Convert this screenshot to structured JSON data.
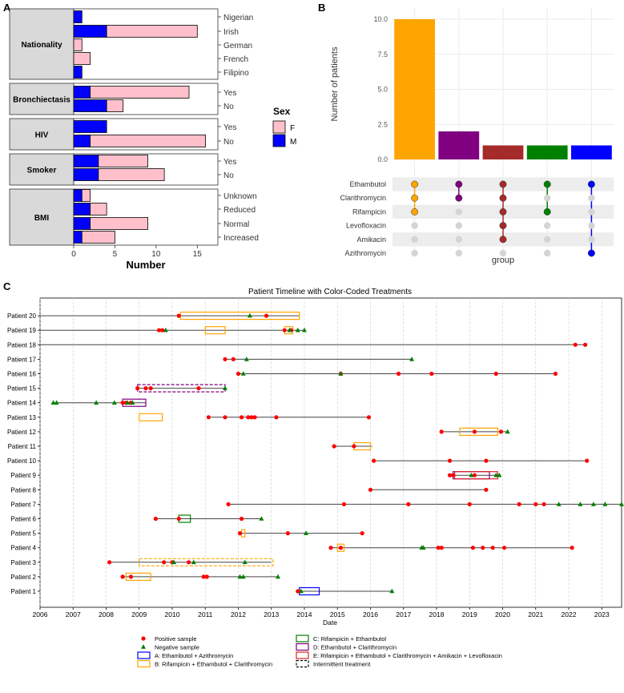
{
  "panelA": {
    "letter": "A",
    "xlabel": "Number",
    "x_ticks": [
      0,
      5,
      10,
      15
    ],
    "xlim": [
      0,
      17.5
    ],
    "legend": {
      "title": "Sex",
      "entries": [
        {
          "label": "F",
          "color": "#FFC0CB"
        },
        {
          "label": "M",
          "color": "#0000FF"
        }
      ]
    },
    "groups": [
      {
        "name": "Nationality",
        "rows": [
          {
            "label": "Nigerian",
            "M": 1,
            "F": 0
          },
          {
            "label": "Irish",
            "M": 4,
            "F": 11
          },
          {
            "label": "German",
            "M": 0,
            "F": 1
          },
          {
            "label": "French",
            "M": 0,
            "F": 2
          },
          {
            "label": "Filipino",
            "M": 1,
            "F": 0
          }
        ]
      },
      {
        "name": "Bronchiectasis",
        "rows": [
          {
            "label": "Yes",
            "M": 2,
            "F": 12
          },
          {
            "label": "No",
            "M": 4,
            "F": 2
          }
        ]
      },
      {
        "name": "HIV",
        "rows": [
          {
            "label": "Yes",
            "M": 4,
            "F": 0
          },
          {
            "label": "No",
            "M": 2,
            "F": 14
          }
        ]
      },
      {
        "name": "Smoker",
        "rows": [
          {
            "label": "Yes",
            "M": 3,
            "F": 6
          },
          {
            "label": "No",
            "M": 3,
            "F": 8
          }
        ]
      },
      {
        "name": "BMI",
        "rows": [
          {
            "label": "Unknown",
            "M": 1,
            "F": 1
          },
          {
            "label": "Reduced",
            "M": 2,
            "F": 2
          },
          {
            "label": "Normal",
            "M": 2,
            "F": 7
          },
          {
            "label": "Increased",
            "M": 1,
            "F": 4
          }
        ]
      }
    ]
  },
  "panelB": {
    "letter": "B",
    "ylabel": "Number of patients",
    "xlabel": "group",
    "y_ticks": [
      "0.0",
      "2.5",
      "5.0",
      "7.5",
      "10.0"
    ],
    "ylim": [
      0,
      10.8
    ],
    "drugs": [
      "Ethambutol",
      "Clarithromycin",
      "Rifampicin",
      "Levofloxacin",
      "Amikacin",
      "Azithromycin"
    ],
    "bars": [
      {
        "value": 10,
        "color": "#FFA500",
        "set": [
          0,
          1,
          2
        ]
      },
      {
        "value": 2,
        "color": "#800080",
        "set": [
          0,
          1
        ]
      },
      {
        "value": 1,
        "color": "#A52A2A",
        "set": [
          0,
          1,
          2,
          3,
          4
        ]
      },
      {
        "value": 1,
        "color": "#008000",
        "set": [
          0,
          2
        ]
      },
      {
        "value": 1,
        "color": "#0000FF",
        "set": [
          0,
          5
        ]
      }
    ]
  },
  "panelC": {
    "letter": "C",
    "title": "Patient Timeline with Color-Coded Treatments",
    "xlabel": "Date",
    "x_ticks": [
      2006,
      2007,
      2008,
      2009,
      2010,
      2011,
      2012,
      2013,
      2014,
      2015,
      2016,
      2017,
      2018,
      2019,
      2020,
      2021,
      2022,
      2023
    ],
    "xlim": [
      2006,
      2023.6
    ],
    "treatment_colors": {
      "A": "#0000FF",
      "B": "#FFA500",
      "C": "#008000",
      "D": "#800080",
      "E": "#D62728"
    },
    "patients": [
      {
        "name": "Patient 1",
        "start": 2013.8,
        "end": 2016.7,
        "pos": [
          2013.8
        ],
        "neg": [
          2013.9,
          2016.65
        ],
        "tx": [
          {
            "type": "A",
            "s": 2013.85,
            "e": 2014.45,
            "i": false
          }
        ]
      },
      {
        "name": "Patient 2",
        "start": 2008.5,
        "end": 2013.2,
        "pos": [
          2008.5,
          2008.75,
          2010.95,
          2011.05
        ],
        "neg": [
          2012.05,
          2012.15,
          2013.2
        ],
        "tx": [
          {
            "type": "B",
            "s": 2008.6,
            "e": 2009.35,
            "i": false
          }
        ]
      },
      {
        "name": "Patient 3",
        "start": 2008.1,
        "end": 2013.0,
        "pos": [
          2008.1,
          2009.75,
          2010.0,
          2010.5
        ],
        "neg": [
          2010.05,
          2010.65,
          2012.2
        ],
        "tx": [
          {
            "type": "B",
            "s": 2009.0,
            "e": 2013.05,
            "i": true
          }
        ]
      },
      {
        "name": "Patient 4",
        "start": 2014.8,
        "end": 2022.1,
        "pos": [
          2014.8,
          2015.1,
          2018.05,
          2018.15,
          2019.1,
          2019.4,
          2019.7,
          2020.05,
          2022.1
        ],
        "neg": [
          2017.55,
          2017.6
        ],
        "tx": [
          {
            "type": "B",
            "s": 2015.0,
            "e": 2015.2,
            "i": false
          }
        ]
      },
      {
        "name": "Patient 5",
        "start": 2012.05,
        "end": 2015.75,
        "pos": [
          2012.05,
          2013.5,
          2015.75
        ],
        "neg": [
          2014.05
        ],
        "tx": [
          {
            "type": "B",
            "s": 2012.1,
            "e": 2012.2,
            "i": false
          }
        ]
      },
      {
        "name": "Patient 6",
        "start": 2009.5,
        "end": 2012.7,
        "pos": [
          2009.5,
          2010.2,
          2012.1
        ],
        "neg": [
          2012.7
        ],
        "tx": [
          {
            "type": "C",
            "s": 2010.2,
            "e": 2010.55,
            "i": false
          }
        ]
      },
      {
        "name": "Patient 7",
        "start": 2011.7,
        "end": 2023.6,
        "pos": [
          2011.7,
          2015.2,
          2017.15,
          2019.0,
          2020.5,
          2021.0,
          2021.25
        ],
        "neg": [
          2021.7,
          2022.35,
          2022.75,
          2023.1,
          2023.6
        ],
        "tx": []
      },
      {
        "name": "Patient 8",
        "start": 2016.0,
        "end": 2019.5,
        "pos": [
          2016.0,
          2019.5
        ],
        "neg": [],
        "tx": []
      },
      {
        "name": "Patient 9",
        "start": 2018.4,
        "end": 2019.9,
        "pos": [
          2018.4,
          2018.5,
          2019.15
        ],
        "neg": [
          2019.05,
          2019.8,
          2019.9
        ],
        "tx": [
          {
            "type": "D",
            "s": 2018.5,
            "e": 2019.6,
            "i": false
          },
          {
            "type": "E",
            "s": 2018.55,
            "e": 2019.85,
            "i": false
          }
        ]
      },
      {
        "name": "Patient 10",
        "start": 2016.1,
        "end": 2022.55,
        "pos": [
          2016.1,
          2018.4,
          2019.5,
          2022.55
        ],
        "neg": [],
        "tx": []
      },
      {
        "name": "Patient 11",
        "start": 2014.9,
        "end": 2016.05,
        "pos": [
          2014.9,
          2015.5
        ],
        "neg": [],
        "tx": [
          {
            "type": "B",
            "s": 2015.5,
            "e": 2016.0,
            "i": false
          }
        ]
      },
      {
        "name": "Patient 12",
        "start": 2018.15,
        "end": 2020.15,
        "pos": [
          2018.15,
          2019.15,
          2019.95
        ],
        "neg": [
          2020.15
        ],
        "tx": [
          {
            "type": "B",
            "s": 2018.7,
            "e": 2019.85,
            "i": false
          }
        ]
      },
      {
        "name": "Patient 13",
        "start": 2011.1,
        "end": 2015.95,
        "pos": [
          2011.1,
          2011.6,
          2012.1,
          2012.3,
          2012.4,
          2012.5,
          2013.15,
          2015.95
        ],
        "neg": [],
        "tx": [
          {
            "type": "B",
            "s": 2009.0,
            "e": 2009.7,
            "i": false
          }
        ]
      },
      {
        "name": "Patient 14",
        "start": 2006.4,
        "end": 2009.2,
        "pos": [
          2008.5,
          2008.6,
          2008.75
        ],
        "neg": [
          2006.4,
          2006.5,
          2007.7,
          2008.25,
          2008.65,
          2008.8
        ],
        "tx": [
          {
            "type": "D",
            "s": 2008.5,
            "e": 2009.2,
            "i": false
          }
        ]
      },
      {
        "name": "Patient 15",
        "start": 2008.95,
        "end": 2011.6,
        "pos": [
          2008.95,
          2009.2,
          2009.35,
          2010.8
        ],
        "neg": [
          2011.6
        ],
        "tx": [
          {
            "type": "D",
            "s": 2008.95,
            "e": 2011.6,
            "i": true
          }
        ]
      },
      {
        "name": "Patient 16",
        "start": 2012.0,
        "end": 2021.6,
        "pos": [
          2012.0,
          2015.1,
          2016.85,
          2017.85,
          2019.8,
          2021.6
        ],
        "neg": [
          2012.15,
          2015.1
        ],
        "tx": []
      },
      {
        "name": "Patient 17",
        "start": 2011.6,
        "end": 2017.25,
        "pos": [
          2011.6,
          2011.85
        ],
        "neg": [
          2012.25,
          2017.25
        ],
        "tx": []
      },
      {
        "name": "Patient 18",
        "start": 2006.0,
        "end": 2022.5,
        "pos": [
          2022.2,
          2022.5
        ],
        "neg": [],
        "tx": []
      },
      {
        "name": "Patient 19",
        "start": 2006.0,
        "end": 2014.0,
        "pos": [
          2009.6,
          2009.7,
          2013.4,
          2013.6
        ],
        "neg": [
          2009.8,
          2013.55,
          2013.8,
          2014.0
        ],
        "tx": [
          {
            "type": "B",
            "s": 2011.0,
            "e": 2011.6,
            "i": false
          },
          {
            "type": "B",
            "s": 2013.4,
            "e": 2013.65,
            "i": false
          }
        ]
      },
      {
        "name": "Patient 20",
        "start": 2006.0,
        "end": 2013.85,
        "pos": [
          2010.2,
          2012.85
        ],
        "neg": [
          2012.35
        ],
        "tx": [
          {
            "type": "B",
            "s": 2010.25,
            "e": 2013.85,
            "i": false
          }
        ]
      }
    ],
    "legend": [
      {
        "kind": "pos",
        "label": "Positive sample",
        "color": "#FF0000"
      },
      {
        "kind": "neg",
        "label": "Negative sample",
        "color": "#008000"
      },
      {
        "kind": "box",
        "label": "A: Ethambutol + Azithromycin",
        "color": "#0000FF"
      },
      {
        "kind": "box",
        "label": "B: Rifampicin + Ethambutol + Clarithromycin",
        "color": "#FFA500"
      },
      {
        "kind": "box",
        "label": "C: Rifampicin + Ethambutol",
        "color": "#008000"
      },
      {
        "kind": "box",
        "label": "D: Ethambutol + Clarithromycin",
        "color": "#800080"
      },
      {
        "kind": "box",
        "label": "E: Rifampicin + Ethambutol + Clarithromycin + Amikacin + Levofloxacin",
        "color": "#D62728"
      },
      {
        "kind": "dash",
        "label": "Intermittent treatment",
        "color": "#000000"
      }
    ]
  }
}
